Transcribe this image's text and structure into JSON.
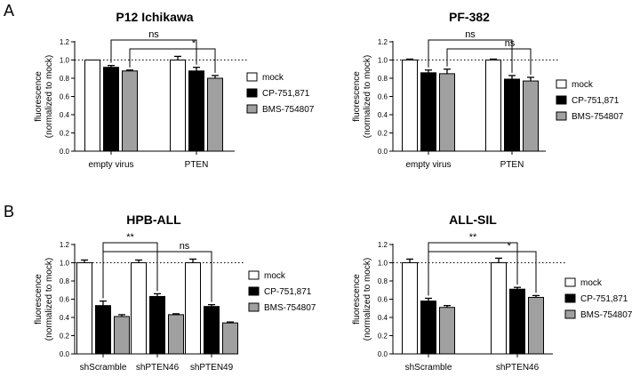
{
  "panel_labels": [
    "A",
    "B"
  ],
  "chart_data": [
    {
      "type": "bar",
      "panel": "A",
      "title": "P12 Ichikawa",
      "ylabel": "fluorescence\n(normalized to mock)",
      "xlabel": "",
      "ylim": [
        0,
        1.2
      ],
      "yticks": [
        0.0,
        0.2,
        0.4,
        0.6,
        0.8,
        1.0,
        1.2
      ],
      "reference_line": 1.0,
      "categories": [
        "empty virus",
        "PTEN"
      ],
      "series": [
        {
          "name": "mock",
          "color": "#ffffff",
          "values": [
            1.0,
            1.0
          ],
          "errors": [
            0.0,
            0.04
          ]
        },
        {
          "name": "CP-751,871",
          "color": "#000000",
          "values": [
            0.92,
            0.88
          ],
          "errors": [
            0.02,
            0.04
          ]
        },
        {
          "name": "BMS-754807",
          "color": "#a0a0a0",
          "values": [
            0.88,
            0.8
          ],
          "errors": [
            0.01,
            0.03
          ]
        }
      ],
      "significance": [
        {
          "label": "ns",
          "from": [
            0,
            1
          ],
          "to": [
            1,
            1
          ]
        },
        {
          "label": "*",
          "from": [
            0,
            2
          ],
          "to": [
            1,
            2
          ]
        }
      ],
      "legend": "right"
    },
    {
      "type": "bar",
      "panel": "A",
      "title": "PF-382",
      "ylabel": "fluorescence\n(normalized to mock)",
      "xlabel": "",
      "ylim": [
        0,
        1.2
      ],
      "yticks": [
        0.0,
        0.2,
        0.4,
        0.6,
        0.8,
        1.0,
        1.2
      ],
      "reference_line": 1.0,
      "categories": [
        "empty virus",
        "PTEN"
      ],
      "series": [
        {
          "name": "mock",
          "color": "#ffffff",
          "values": [
            1.0,
            1.0
          ],
          "errors": [
            0.01,
            0.01
          ]
        },
        {
          "name": "CP-751,871",
          "color": "#000000",
          "values": [
            0.86,
            0.79
          ],
          "errors": [
            0.03,
            0.04
          ]
        },
        {
          "name": "BMS-754807",
          "color": "#a0a0a0",
          "values": [
            0.85,
            0.77
          ],
          "errors": [
            0.05,
            0.04
          ]
        }
      ],
      "significance": [
        {
          "label": "ns",
          "from": [
            0,
            1
          ],
          "to": [
            1,
            1
          ]
        },
        {
          "label": "ns",
          "from": [
            0,
            2
          ],
          "to": [
            1,
            2
          ]
        }
      ],
      "legend": "right"
    },
    {
      "type": "bar",
      "panel": "B",
      "title": "HPB-ALL",
      "ylabel": "fluorescence\n(normalized to mock)",
      "xlabel": "",
      "ylim": [
        0,
        1.2
      ],
      "yticks": [
        0.0,
        0.2,
        0.4,
        0.6,
        0.8,
        1.0,
        1.2
      ],
      "reference_line": 1.0,
      "categories": [
        "shScramble",
        "shPTEN46",
        "shPTEN49"
      ],
      "series": [
        {
          "name": "mock",
          "color": "#ffffff",
          "values": [
            1.0,
            1.0,
            1.0
          ],
          "errors": [
            0.03,
            0.03,
            0.04
          ]
        },
        {
          "name": "CP-751,871",
          "color": "#000000",
          "values": [
            0.53,
            0.63,
            0.52
          ],
          "errors": [
            0.05,
            0.03,
            0.02
          ]
        },
        {
          "name": "BMS-754807",
          "color": "#a0a0a0",
          "values": [
            0.41,
            0.43,
            0.34
          ],
          "errors": [
            0.02,
            0.01,
            0.01
          ]
        }
      ],
      "significance": [
        {
          "label": "**",
          "from": [
            0,
            1
          ],
          "to": [
            1,
            1
          ]
        },
        {
          "label": "ns",
          "from": [
            0,
            1
          ],
          "to": [
            2,
            1
          ]
        }
      ],
      "legend": "right"
    },
    {
      "type": "bar",
      "panel": "B",
      "title": "ALL-SIL",
      "ylabel": "fluorescence\n(normalized to mock)",
      "xlabel": "",
      "ylim": [
        0,
        1.2
      ],
      "yticks": [
        0.0,
        0.2,
        0.4,
        0.6,
        0.8,
        1.0,
        1.2
      ],
      "reference_line": 1.0,
      "categories": [
        "shScramble",
        "shPTEN46"
      ],
      "series": [
        {
          "name": "mock",
          "color": "#ffffff",
          "values": [
            1.0,
            1.0
          ],
          "errors": [
            0.04,
            0.05
          ]
        },
        {
          "name": "CP-751,871",
          "color": "#000000",
          "values": [
            0.58,
            0.71
          ],
          "errors": [
            0.03,
            0.02
          ]
        },
        {
          "name": "BMS-754807",
          "color": "#a0a0a0",
          "values": [
            0.51,
            0.62
          ],
          "errors": [
            0.02,
            0.02
          ]
        }
      ],
      "significance": [
        {
          "label": "**",
          "from": [
            0,
            1
          ],
          "to": [
            1,
            1
          ]
        },
        {
          "label": "*",
          "from": [
            0,
            1
          ],
          "to": [
            1,
            2
          ]
        }
      ],
      "legend": "right"
    }
  ]
}
